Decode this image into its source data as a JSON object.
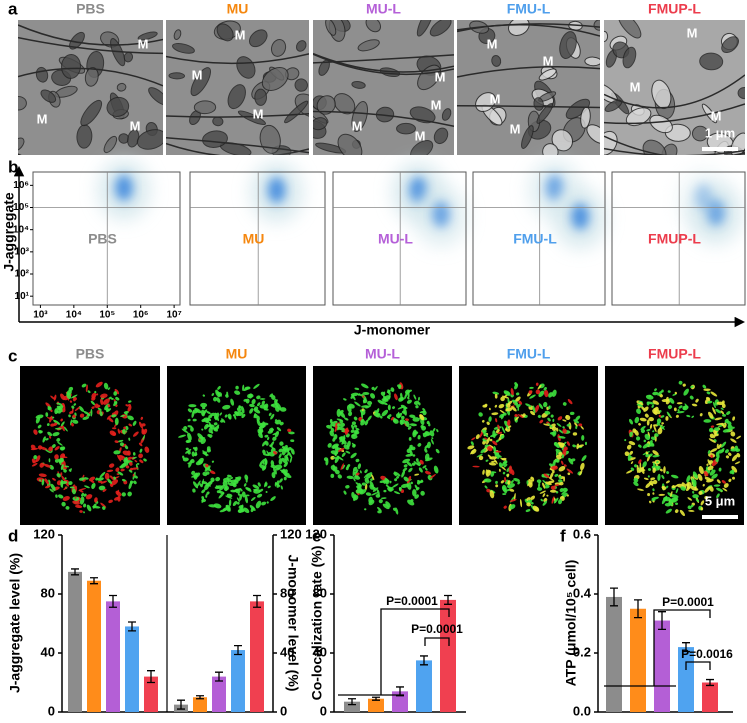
{
  "panel_labels": [
    "a",
    "b",
    "c",
    "d",
    "e",
    "f"
  ],
  "tem": {
    "labels": [
      "PBS",
      "MU",
      "MU-L",
      "FMU-L",
      "FMUP-L"
    ],
    "colors": [
      "#8c8c8c",
      "#f5870f",
      "#b560d8",
      "#4f9fec",
      "#ec3c4c"
    ],
    "markers": [
      [
        "M",
        "M",
        "M"
      ],
      [
        "M",
        "M",
        "M"
      ],
      [
        "M",
        "M",
        "M",
        "M"
      ],
      [
        "M",
        "M",
        "M",
        "M"
      ],
      [
        "M",
        "M",
        "M"
      ]
    ],
    "scale_bar": "1 μm"
  },
  "confocal": {
    "labels": [
      "PBS",
      "MU",
      "MU-L",
      "FMU-L",
      "FMUP-L"
    ],
    "colors": [
      "#8c8c8c",
      "#f5870f",
      "#b560d8",
      "#4f9fec",
      "#ec3c4c"
    ],
    "scale_bar": "5 μm"
  },
  "chart_data": [
    {
      "type": "flow",
      "xlabel": "J-monomer",
      "ylabel": "J-aggregate",
      "log": true,
      "panels": [
        "PBS",
        "MU",
        "MU-L",
        "FMU-L",
        "FMUP-L"
      ],
      "colors": [
        "#8c8c8c",
        "#f5870f",
        "#b560d8",
        "#4f9fec",
        "#ec3c4c"
      ],
      "xlim": [
        600,
        15000000
      ],
      "ylim": [
        4,
        4000000
      ],
      "xticks": [
        {
          "value": 1000,
          "label": "10³"
        },
        {
          "value": 10000,
          "label": "10⁴"
        },
        {
          "value": 100000,
          "label": "10⁵"
        },
        {
          "value": 1000000,
          "label": "10⁶"
        },
        {
          "value": 10000000,
          "label": "10⁷"
        }
      ],
      "yticks": [
        {
          "value": 10,
          "label": "10¹"
        },
        {
          "value": 100,
          "label": "10²"
        },
        {
          "value": 1000,
          "label": "10³"
        },
        {
          "value": 10000,
          "label": "10⁴"
        },
        {
          "value": 100000,
          "label": "10⁵"
        },
        {
          "value": 1000000,
          "label": "10⁶"
        }
      ],
      "gates": {
        "x": 100000,
        "y": 100000
      }
    },
    {
      "type": "bar",
      "ylabel": "J-aggregate level (%)",
      "y2label": "J-monomer level (%)",
      "colors": [
        "#8c8c8c",
        "#ff8c1a",
        "#b45fd6",
        "#4fa3f0",
        "#f04050"
      ],
      "ylim": [
        0,
        120
      ],
      "yticks": [
        0,
        40,
        80,
        120
      ],
      "y2lim": [
        0,
        120
      ],
      "y2ticks": [
        0,
        40,
        80,
        120
      ],
      "series": [
        {
          "values": [
            95,
            89,
            75,
            58,
            24
          ],
          "errors": [
            2,
            2,
            4,
            3,
            4
          ]
        },
        {
          "values": [
            5,
            10,
            24,
            42,
            75
          ],
          "errors": [
            3,
            1,
            3,
            3,
            4
          ],
          "axis": "y2"
        }
      ]
    },
    {
      "type": "bar",
      "ylabel": "Co-localization rate (%)",
      "colors": [
        "#8c8c8c",
        "#ff8c1a",
        "#b45fd6",
        "#4fa3f0",
        "#f04050"
      ],
      "ylim": [
        0,
        120
      ],
      "yticks": [
        0,
        40,
        80,
        120
      ],
      "series": [
        {
          "values": [
            7,
            9,
            14,
            35,
            76
          ],
          "errors": [
            2,
            1,
            3,
            3,
            3
          ]
        }
      ],
      "annotations": [
        "P=0.0001",
        "P=0.0001"
      ]
    },
    {
      "type": "bar",
      "ylabel": "ATP (μmol/10⁵ cell)",
      "colors": [
        "#8c8c8c",
        "#ff8c1a",
        "#b45fd6",
        "#4fa3f0",
        "#f04050"
      ],
      "ylim": [
        0,
        0.6
      ],
      "yticks": [
        {
          "value": 0,
          "label": "0.0"
        },
        0.2,
        0.4,
        0.6
      ],
      "series": [
        {
          "values": [
            0.39,
            0.35,
            0.31,
            0.22,
            0.1
          ],
          "errors": [
            0.03,
            0.03,
            0.03,
            0.015,
            0.01
          ]
        }
      ],
      "annotations": [
        "P=0.0001",
        "P=0.0016"
      ]
    }
  ]
}
